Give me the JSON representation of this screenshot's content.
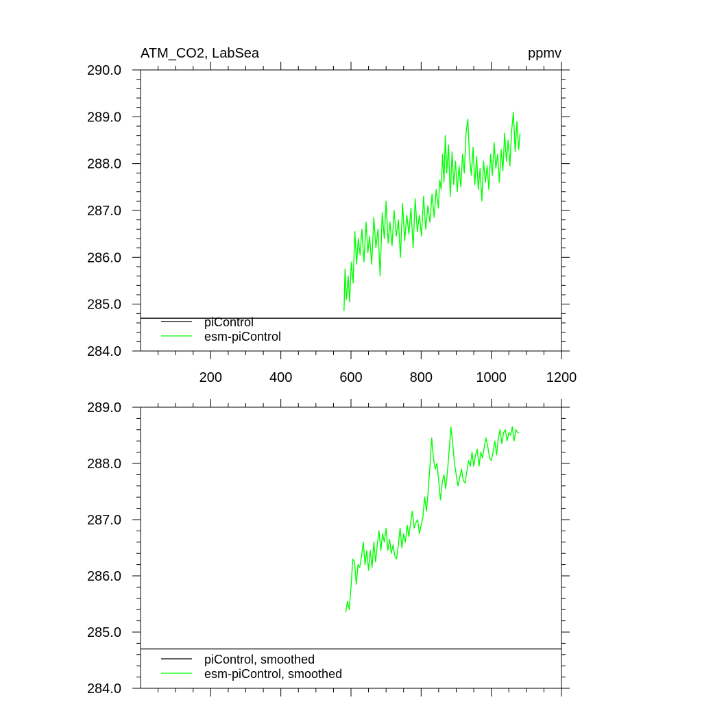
{
  "chart_data": [
    {
      "type": "line",
      "title": "ATM_CO2, LabSea",
      "units": "ppmv",
      "xlabel": "",
      "ylabel": "",
      "xlim": [
        0,
        1200
      ],
      "ylim": [
        284.0,
        290.0
      ],
      "x_ticks": [
        200,
        400,
        600,
        800,
        1000,
        1200
      ],
      "x_tick_labels": [
        "200",
        "400",
        "600",
        "800",
        "1000",
        "1200"
      ],
      "y_ticks": [
        284.0,
        285.0,
        286.0,
        287.0,
        288.0,
        289.0,
        290.0
      ],
      "y_tick_labels": [
        "284.0",
        "285.0",
        "286.0",
        "287.0",
        "288.0",
        "289.0",
        "290.0"
      ],
      "legend_position": "bottom-left",
      "series": [
        {
          "name": "piControl",
          "color": "#000000",
          "x": [
            0,
            1200
          ],
          "y": [
            284.7,
            284.7
          ]
        },
        {
          "name": "esm-piControl",
          "color": "#00ff00",
          "x": [
            580,
            583,
            587,
            592,
            596,
            601,
            606,
            611,
            616,
            621,
            626,
            631,
            637,
            643,
            648,
            653,
            659,
            665,
            671,
            677,
            683,
            689,
            695,
            700,
            706,
            711,
            717,
            723,
            729,
            735,
            741,
            747,
            753,
            759,
            765,
            771,
            777,
            783,
            789,
            795,
            801,
            807,
            813,
            819,
            825,
            831,
            837,
            843,
            849,
            853,
            857,
            861,
            865,
            869,
            873,
            878,
            883,
            888,
            893,
            898,
            903,
            908,
            913,
            918,
            923,
            928,
            933,
            938,
            943,
            948,
            953,
            958,
            963,
            968,
            973,
            978,
            983,
            988,
            993,
            998,
            1003,
            1008,
            1013,
            1018,
            1023,
            1028,
            1033,
            1038,
            1043,
            1048,
            1053,
            1058,
            1063,
            1068,
            1073,
            1078,
            1082
          ],
          "y": [
            284.85,
            285.75,
            285.1,
            285.6,
            285.05,
            285.9,
            285.45,
            286.55,
            285.85,
            286.4,
            286.05,
            286.6,
            285.9,
            286.75,
            286.1,
            286.45,
            285.85,
            286.85,
            286.2,
            286.6,
            285.6,
            286.95,
            286.4,
            287.2,
            286.3,
            286.75,
            286.25,
            287.0,
            286.45,
            286.8,
            286.0,
            287.15,
            286.35,
            286.9,
            286.5,
            287.05,
            286.2,
            287.25,
            286.55,
            286.9,
            286.45,
            287.3,
            286.6,
            287.1,
            286.75,
            287.35,
            286.85,
            287.45,
            287.05,
            287.65,
            287.45,
            288.2,
            287.6,
            288.6,
            287.8,
            288.4,
            287.3,
            288.25,
            287.55,
            288.05,
            287.4,
            287.95,
            287.5,
            288.2,
            287.8,
            288.65,
            288.95,
            288.15,
            287.75,
            288.35,
            287.55,
            288.15,
            287.45,
            287.9,
            287.2,
            288.05,
            287.6,
            287.95,
            287.45,
            288.2,
            287.75,
            288.45,
            287.9,
            288.2,
            287.6,
            288.3,
            287.85,
            288.65,
            288.05,
            288.5,
            287.95,
            288.7,
            289.1,
            288.25,
            288.9,
            288.3,
            288.65
          ]
        }
      ]
    },
    {
      "type": "line",
      "title": "",
      "xlabel": "",
      "ylabel": "",
      "xlim": [
        0,
        1200
      ],
      "ylim": [
        284.0,
        289.0
      ],
      "x_ticks": [
        200,
        400,
        600,
        800,
        1000,
        1200
      ],
      "y_ticks": [
        284.0,
        285.0,
        286.0,
        287.0,
        288.0,
        289.0
      ],
      "y_tick_labels": [
        "284.0",
        "285.0",
        "286.0",
        "287.0",
        "288.0",
        "289.0"
      ],
      "legend_position": "bottom-left",
      "series": [
        {
          "name": "piControl, smoothed",
          "color": "#000000",
          "x": [
            0,
            1200
          ],
          "y": [
            284.7,
            284.7
          ]
        },
        {
          "name": "esm-piControl, smoothed",
          "color": "#00ff00",
          "x": [
            585,
            590,
            595,
            600,
            605,
            610,
            615,
            620,
            625,
            630,
            635,
            640,
            645,
            650,
            655,
            660,
            665,
            670,
            675,
            680,
            685,
            690,
            695,
            700,
            705,
            710,
            715,
            720,
            725,
            730,
            735,
            740,
            745,
            750,
            755,
            760,
            765,
            770,
            775,
            780,
            785,
            790,
            795,
            800,
            805,
            810,
            815,
            820,
            825,
            830,
            835,
            840,
            845,
            850,
            855,
            860,
            865,
            870,
            875,
            880,
            885,
            890,
            895,
            900,
            905,
            910,
            915,
            920,
            925,
            930,
            935,
            940,
            945,
            950,
            955,
            960,
            965,
            970,
            975,
            980,
            985,
            990,
            995,
            1000,
            1005,
            1010,
            1015,
            1020,
            1025,
            1030,
            1035,
            1040,
            1045,
            1050,
            1055,
            1060,
            1065,
            1070,
            1075,
            1080
          ],
          "y": [
            285.35,
            285.55,
            285.4,
            285.8,
            286.3,
            286.25,
            285.85,
            286.2,
            286.15,
            286.35,
            286.6,
            286.2,
            286.45,
            286.1,
            286.45,
            286.15,
            286.6,
            286.25,
            286.55,
            286.8,
            286.45,
            286.75,
            286.6,
            286.85,
            286.45,
            286.65,
            286.4,
            286.55,
            286.35,
            286.3,
            286.55,
            286.85,
            286.5,
            286.75,
            286.6,
            286.9,
            286.7,
            286.95,
            287.15,
            286.85,
            286.95,
            287.0,
            286.75,
            286.9,
            287.05,
            287.4,
            287.15,
            287.5,
            287.95,
            288.45,
            288.1,
            287.9,
            288.0,
            287.7,
            287.35,
            287.65,
            287.8,
            287.55,
            287.85,
            288.25,
            288.65,
            288.35,
            288.0,
            287.8,
            287.6,
            287.75,
            287.9,
            287.7,
            287.65,
            287.85,
            288.05,
            287.95,
            288.2,
            287.95,
            288.15,
            288.25,
            287.95,
            288.2,
            288.1,
            288.3,
            288.45,
            288.3,
            288.1,
            288.05,
            288.2,
            288.4,
            288.15,
            288.45,
            288.6,
            288.35,
            288.55,
            288.6,
            288.4,
            288.55,
            288.5,
            288.65,
            288.4,
            288.6,
            288.55,
            288.55
          ]
        }
      ]
    }
  ]
}
